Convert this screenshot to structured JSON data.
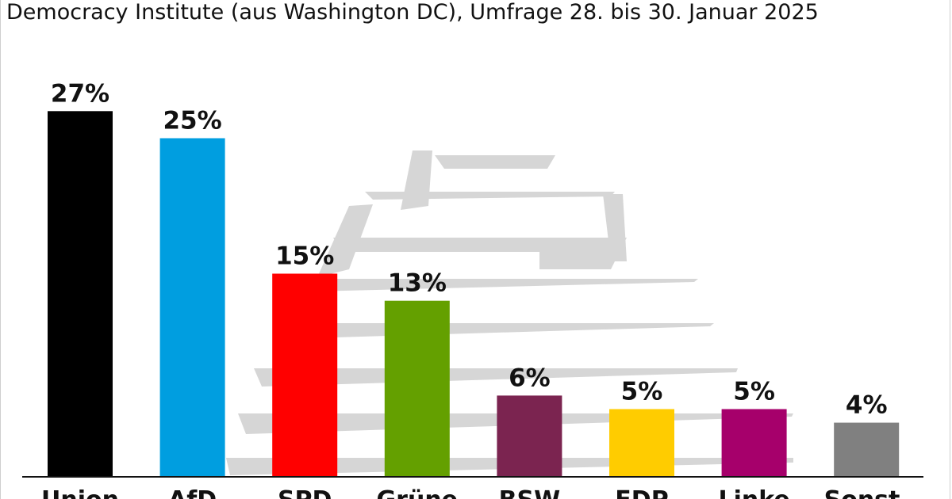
{
  "header": {
    "title": "Democracy Institute (aus Washington DC), Umfrage 28. bis 30. Januar 2025"
  },
  "chart_data": {
    "type": "bar",
    "title": "Democracy Institute (aus Washington DC), Umfrage 28. bis 30. Januar 2025",
    "xlabel": "",
    "ylabel": "",
    "categories": [
      "Union",
      "AfD",
      "SPD",
      "Grüne",
      "BSW",
      "FDP",
      "Linke",
      "Sonst."
    ],
    "values": [
      27,
      25,
      15,
      13,
      6,
      5,
      5,
      4
    ],
    "value_labels": [
      "27%",
      "25%",
      "15%",
      "13%",
      "6%",
      "5%",
      "5%",
      "4%"
    ],
    "colors": [
      "#000000",
      "#009ee0",
      "#ff0000",
      "#64a000",
      "#7b2450",
      "#ffcc00",
      "#a6006b",
      "#808080"
    ],
    "ylim": [
      0,
      30
    ],
    "grid": false,
    "legend": "none"
  }
}
